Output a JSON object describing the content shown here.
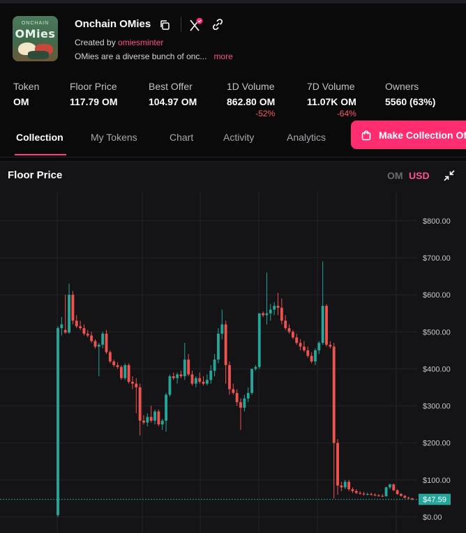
{
  "collection": {
    "name": "Onchain OMies",
    "logo_text": "OMies",
    "logo_subtext": "ONCHAIN",
    "created_by_label": "Created by",
    "creator": "omiesminter",
    "description": "OMies are a diverse bunch of onc...",
    "more_label": "more"
  },
  "stats": [
    {
      "label": "Token",
      "value": "OM",
      "change": ""
    },
    {
      "label": "Floor Price",
      "value": "117.79 OM",
      "change": ""
    },
    {
      "label": "Best Offer",
      "value": "104.97 OM",
      "change": ""
    },
    {
      "label": "1D Volume",
      "value": "862.80 OM",
      "change": "-52%"
    },
    {
      "label": "7D Volume",
      "value": "11.07K OM",
      "change": "-64%"
    },
    {
      "label": "Owners",
      "value": "5560 (63%)",
      "change": ""
    }
  ],
  "tabs": [
    "Collection",
    "My Tokens",
    "Chart",
    "Activity",
    "Analytics"
  ],
  "active_tab": "Collection",
  "make_offer_label": "Make Collection Of",
  "panel": {
    "title": "Floor Price",
    "currency_options": [
      "OM",
      "USD"
    ],
    "selected_currency": "USD"
  },
  "colors": {
    "accent": "#ff2d6f",
    "up": "#26a69a",
    "down": "#ef5350",
    "negative": "#ff5a64"
  },
  "chart_data": {
    "type": "candlestick",
    "y_unit": "USD",
    "ylim": [
      0,
      850
    ],
    "y_ticks": [
      "$0.00",
      "$100.00",
      "$200.00",
      "$300.00",
      "$400.00",
      "$500.00",
      "$600.00",
      "$700.00",
      "$800.00"
    ],
    "current_value_label": "$47.59",
    "current_value": 47.59,
    "candles": [
      {
        "o": 5,
        "h": 515,
        "l": 0,
        "c": 510
      },
      {
        "o": 510,
        "h": 540,
        "l": 490,
        "c": 520
      },
      {
        "o": 505,
        "h": 600,
        "l": 495,
        "c": 498
      },
      {
        "o": 498,
        "h": 630,
        "l": 495,
        "c": 600
      },
      {
        "o": 600,
        "h": 610,
        "l": 520,
        "c": 530
      },
      {
        "o": 530,
        "h": 545,
        "l": 510,
        "c": 515
      },
      {
        "o": 515,
        "h": 530,
        "l": 505,
        "c": 510
      },
      {
        "o": 510,
        "h": 520,
        "l": 490,
        "c": 495
      },
      {
        "o": 495,
        "h": 505,
        "l": 485,
        "c": 490
      },
      {
        "o": 490,
        "h": 500,
        "l": 470,
        "c": 475
      },
      {
        "o": 475,
        "h": 480,
        "l": 455,
        "c": 460
      },
      {
        "o": 460,
        "h": 470,
        "l": 380,
        "c": 465
      },
      {
        "o": 465,
        "h": 500,
        "l": 455,
        "c": 495
      },
      {
        "o": 495,
        "h": 505,
        "l": 440,
        "c": 445
      },
      {
        "o": 445,
        "h": 450,
        "l": 415,
        "c": 420
      },
      {
        "o": 420,
        "h": 425,
        "l": 405,
        "c": 410
      },
      {
        "o": 410,
        "h": 418,
        "l": 400,
        "c": 405
      },
      {
        "o": 405,
        "h": 410,
        "l": 370,
        "c": 375
      },
      {
        "o": 375,
        "h": 415,
        "l": 370,
        "c": 410
      },
      {
        "o": 410,
        "h": 415,
        "l": 360,
        "c": 365
      },
      {
        "o": 365,
        "h": 380,
        "l": 345,
        "c": 360
      },
      {
        "o": 360,
        "h": 375,
        "l": 280,
        "c": 350
      },
      {
        "o": 350,
        "h": 360,
        "l": 220,
        "c": 260
      },
      {
        "o": 260,
        "h": 275,
        "l": 250,
        "c": 255
      },
      {
        "o": 255,
        "h": 280,
        "l": 245,
        "c": 270
      },
      {
        "o": 270,
        "h": 300,
        "l": 255,
        "c": 260
      },
      {
        "o": 260,
        "h": 290,
        "l": 250,
        "c": 285
      },
      {
        "o": 285,
        "h": 290,
        "l": 245,
        "c": 250
      },
      {
        "o": 250,
        "h": 265,
        "l": 235,
        "c": 260
      },
      {
        "o": 260,
        "h": 335,
        "l": 230,
        "c": 330
      },
      {
        "o": 330,
        "h": 385,
        "l": 325,
        "c": 380
      },
      {
        "o": 380,
        "h": 390,
        "l": 370,
        "c": 375
      },
      {
        "o": 375,
        "h": 390,
        "l": 360,
        "c": 385
      },
      {
        "o": 385,
        "h": 395,
        "l": 375,
        "c": 380
      },
      {
        "o": 380,
        "h": 470,
        "l": 370,
        "c": 425
      },
      {
        "o": 425,
        "h": 440,
        "l": 380,
        "c": 385
      },
      {
        "o": 385,
        "h": 395,
        "l": 355,
        "c": 360
      },
      {
        "o": 360,
        "h": 380,
        "l": 350,
        "c": 375
      },
      {
        "o": 375,
        "h": 390,
        "l": 360,
        "c": 365
      },
      {
        "o": 365,
        "h": 380,
        "l": 355,
        "c": 360
      },
      {
        "o": 360,
        "h": 385,
        "l": 355,
        "c": 370
      },
      {
        "o": 370,
        "h": 410,
        "l": 360,
        "c": 395
      },
      {
        "o": 395,
        "h": 440,
        "l": 380,
        "c": 425
      },
      {
        "o": 425,
        "h": 510,
        "l": 415,
        "c": 495
      },
      {
        "o": 495,
        "h": 560,
        "l": 480,
        "c": 520
      },
      {
        "o": 520,
        "h": 530,
        "l": 360,
        "c": 410
      },
      {
        "o": 410,
        "h": 420,
        "l": 330,
        "c": 345
      },
      {
        "o": 345,
        "h": 360,
        "l": 330,
        "c": 335
      },
      {
        "o": 335,
        "h": 345,
        "l": 300,
        "c": 310
      },
      {
        "o": 310,
        "h": 320,
        "l": 235,
        "c": 295
      },
      {
        "o": 295,
        "h": 330,
        "l": 285,
        "c": 320
      },
      {
        "o": 320,
        "h": 350,
        "l": 310,
        "c": 335
      },
      {
        "o": 335,
        "h": 400,
        "l": 330,
        "c": 400
      },
      {
        "o": 400,
        "h": 410,
        "l": 395,
        "c": 405
      },
      {
        "o": 405,
        "h": 550,
        "l": 400,
        "c": 550
      },
      {
        "o": 550,
        "h": 555,
        "l": 540,
        "c": 545
      },
      {
        "o": 545,
        "h": 660,
        "l": 520,
        "c": 550
      },
      {
        "o": 550,
        "h": 575,
        "l": 530,
        "c": 560
      },
      {
        "o": 560,
        "h": 580,
        "l": 545,
        "c": 570
      },
      {
        "o": 570,
        "h": 605,
        "l": 545,
        "c": 565
      },
      {
        "o": 565,
        "h": 590,
        "l": 520,
        "c": 530
      },
      {
        "o": 530,
        "h": 545,
        "l": 505,
        "c": 510
      },
      {
        "o": 510,
        "h": 520,
        "l": 495,
        "c": 500
      },
      {
        "o": 500,
        "h": 505,
        "l": 480,
        "c": 485
      },
      {
        "o": 485,
        "h": 495,
        "l": 465,
        "c": 470
      },
      {
        "o": 470,
        "h": 480,
        "l": 450,
        "c": 460
      },
      {
        "o": 460,
        "h": 475,
        "l": 445,
        "c": 450
      },
      {
        "o": 450,
        "h": 460,
        "l": 430,
        "c": 435
      },
      {
        "o": 435,
        "h": 445,
        "l": 415,
        "c": 420
      },
      {
        "o": 420,
        "h": 455,
        "l": 410,
        "c": 450
      },
      {
        "o": 450,
        "h": 475,
        "l": 440,
        "c": 470
      },
      {
        "o": 470,
        "h": 690,
        "l": 465,
        "c": 570
      },
      {
        "o": 570,
        "h": 575,
        "l": 460,
        "c": 465
      },
      {
        "o": 465,
        "h": 475,
        "l": 455,
        "c": 460
      },
      {
        "o": 460,
        "h": 470,
        "l": 50,
        "c": 200
      },
      {
        "o": 200,
        "h": 210,
        "l": 60,
        "c": 85
      },
      {
        "o": 85,
        "h": 95,
        "l": 70,
        "c": 80
      },
      {
        "o": 80,
        "h": 100,
        "l": 75,
        "c": 95
      },
      {
        "o": 95,
        "h": 100,
        "l": 70,
        "c": 75
      },
      {
        "o": 75,
        "h": 80,
        "l": 65,
        "c": 70
      },
      {
        "o": 70,
        "h": 75,
        "l": 62,
        "c": 65
      },
      {
        "o": 65,
        "h": 70,
        "l": 60,
        "c": 63
      },
      {
        "o": 63,
        "h": 68,
        "l": 58,
        "c": 61
      },
      {
        "o": 61,
        "h": 66,
        "l": 58,
        "c": 62
      },
      {
        "o": 62,
        "h": 66,
        "l": 58,
        "c": 60
      },
      {
        "o": 60,
        "h": 64,
        "l": 56,
        "c": 58
      },
      {
        "o": 58,
        "h": 62,
        "l": 55,
        "c": 57
      },
      {
        "o": 57,
        "h": 62,
        "l": 54,
        "c": 56
      },
      {
        "o": 56,
        "h": 82,
        "l": 55,
        "c": 80
      },
      {
        "o": 80,
        "h": 90,
        "l": 75,
        "c": 88
      },
      {
        "o": 88,
        "h": 90,
        "l": 70,
        "c": 72
      },
      {
        "o": 72,
        "h": 75,
        "l": 60,
        "c": 62
      },
      {
        "o": 62,
        "h": 65,
        "l": 55,
        "c": 57
      },
      {
        "o": 57,
        "h": 60,
        "l": 50,
        "c": 52
      },
      {
        "o": 52,
        "h": 55,
        "l": 48,
        "c": 50
      },
      {
        "o": 50,
        "h": 52,
        "l": 45,
        "c": 47.59
      }
    ]
  }
}
